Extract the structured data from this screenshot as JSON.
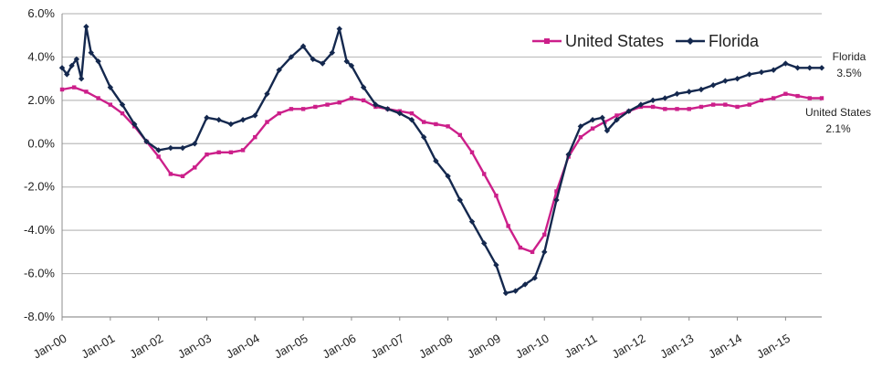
{
  "chart_data": {
    "type": "line",
    "title": "",
    "xlabel": "",
    "ylabel": "",
    "ylim": [
      -8,
      6
    ],
    "y_ticks": [
      "6.0%",
      "4.0%",
      "2.0%",
      "0.0%",
      "-2.0%",
      "-4.0%",
      "-6.0%",
      "-8.0%"
    ],
    "y_tick_values": [
      6,
      4,
      2,
      0,
      -2,
      -4,
      -6,
      -8
    ],
    "x_ticks": [
      "Jan-00",
      "Jan-01",
      "Jan-02",
      "Jan-03",
      "Jan-04",
      "Jan-05",
      "Jan-06",
      "Jan-07",
      "Jan-08",
      "Jan-09",
      "Jan-10",
      "Jan-11",
      "Jan-12",
      "Jan-13",
      "Jan-14",
      "Jan-15"
    ],
    "x_tick_values": [
      2000,
      2001,
      2002,
      2003,
      2004,
      2005,
      2006,
      2007,
      2008,
      2009,
      2010,
      2011,
      2012,
      2013,
      2014,
      2015
    ],
    "xlim": [
      2000,
      2015.75
    ],
    "grid": true,
    "legend": "top-right",
    "series": [
      {
        "name": "United States",
        "color": "#cc1f8a",
        "marker": "square",
        "points": [
          [
            2000,
            2.5
          ],
          [
            2000.25,
            2.6
          ],
          [
            2000.5,
            2.4
          ],
          [
            2000.75,
            2.1
          ],
          [
            2001,
            1.8
          ],
          [
            2001.25,
            1.4
          ],
          [
            2001.5,
            0.8
          ],
          [
            2001.75,
            0.1
          ],
          [
            2002,
            -0.6
          ],
          [
            2002.25,
            -1.4
          ],
          [
            2002.5,
            -1.5
          ],
          [
            2002.75,
            -1.1
          ],
          [
            2003,
            -0.5
          ],
          [
            2003.25,
            -0.4
          ],
          [
            2003.5,
            -0.4
          ],
          [
            2003.75,
            -0.3
          ],
          [
            2004,
            0.3
          ],
          [
            2004.25,
            1.0
          ],
          [
            2004.5,
            1.4
          ],
          [
            2004.75,
            1.6
          ],
          [
            2005,
            1.6
          ],
          [
            2005.25,
            1.7
          ],
          [
            2005.5,
            1.8
          ],
          [
            2005.75,
            1.9
          ],
          [
            2006,
            2.1
          ],
          [
            2006.25,
            2.0
          ],
          [
            2006.5,
            1.7
          ],
          [
            2006.75,
            1.6
          ],
          [
            2007,
            1.5
          ],
          [
            2007.25,
            1.4
          ],
          [
            2007.5,
            1.0
          ],
          [
            2007.75,
            0.9
          ],
          [
            2008,
            0.8
          ],
          [
            2008.25,
            0.4
          ],
          [
            2008.5,
            -0.4
          ],
          [
            2008.75,
            -1.4
          ],
          [
            2009,
            -2.4
          ],
          [
            2009.25,
            -3.8
          ],
          [
            2009.5,
            -4.8
          ],
          [
            2009.75,
            -5.0
          ],
          [
            2010,
            -4.2
          ],
          [
            2010.25,
            -2.2
          ],
          [
            2010.5,
            -0.6
          ],
          [
            2010.75,
            0.3
          ],
          [
            2011,
            0.7
          ],
          [
            2011.25,
            1.0
          ],
          [
            2011.5,
            1.3
          ],
          [
            2011.75,
            1.5
          ],
          [
            2012,
            1.7
          ],
          [
            2012.25,
            1.7
          ],
          [
            2012.5,
            1.6
          ],
          [
            2012.75,
            1.6
          ],
          [
            2013,
            1.6
          ],
          [
            2013.25,
            1.7
          ],
          [
            2013.5,
            1.8
          ],
          [
            2013.75,
            1.8
          ],
          [
            2014,
            1.7
          ],
          [
            2014.25,
            1.8
          ],
          [
            2014.5,
            2.0
          ],
          [
            2014.75,
            2.1
          ],
          [
            2015,
            2.3
          ],
          [
            2015.25,
            2.2
          ],
          [
            2015.5,
            2.1
          ],
          [
            2015.75,
            2.1
          ]
        ]
      },
      {
        "name": "Florida",
        "color": "#14284e",
        "marker": "diamond",
        "points": [
          [
            2000,
            3.5
          ],
          [
            2000.1,
            3.2
          ],
          [
            2000.2,
            3.6
          ],
          [
            2000.3,
            3.9
          ],
          [
            2000.4,
            3.0
          ],
          [
            2000.5,
            5.4
          ],
          [
            2000.6,
            4.2
          ],
          [
            2000.75,
            3.8
          ],
          [
            2001,
            2.6
          ],
          [
            2001.25,
            1.8
          ],
          [
            2001.5,
            0.9
          ],
          [
            2001.75,
            0.1
          ],
          [
            2002,
            -0.3
          ],
          [
            2002.25,
            -0.2
          ],
          [
            2002.5,
            -0.2
          ],
          [
            2002.75,
            0.0
          ],
          [
            2003,
            1.2
          ],
          [
            2003.25,
            1.1
          ],
          [
            2003.5,
            0.9
          ],
          [
            2003.75,
            1.1
          ],
          [
            2004,
            1.3
          ],
          [
            2004.25,
            2.3
          ],
          [
            2004.5,
            3.4
          ],
          [
            2004.75,
            4.0
          ],
          [
            2005,
            4.5
          ],
          [
            2005.2,
            3.9
          ],
          [
            2005.4,
            3.7
          ],
          [
            2005.6,
            4.2
          ],
          [
            2005.75,
            5.3
          ],
          [
            2005.9,
            3.8
          ],
          [
            2006,
            3.6
          ],
          [
            2006.25,
            2.6
          ],
          [
            2006.5,
            1.8
          ],
          [
            2006.75,
            1.6
          ],
          [
            2007,
            1.4
          ],
          [
            2007.25,
            1.1
          ],
          [
            2007.5,
            0.3
          ],
          [
            2007.75,
            -0.8
          ],
          [
            2008,
            -1.5
          ],
          [
            2008.25,
            -2.6
          ],
          [
            2008.5,
            -3.6
          ],
          [
            2008.75,
            -4.6
          ],
          [
            2009,
            -5.6
          ],
          [
            2009.2,
            -6.9
          ],
          [
            2009.4,
            -6.8
          ],
          [
            2009.6,
            -6.5
          ],
          [
            2009.8,
            -6.2
          ],
          [
            2010,
            -5.0
          ],
          [
            2010.25,
            -2.6
          ],
          [
            2010.5,
            -0.5
          ],
          [
            2010.75,
            0.8
          ],
          [
            2011,
            1.1
          ],
          [
            2011.2,
            1.2
          ],
          [
            2011.3,
            0.6
          ],
          [
            2011.5,
            1.1
          ],
          [
            2011.75,
            1.5
          ],
          [
            2012,
            1.8
          ],
          [
            2012.25,
            2.0
          ],
          [
            2012.5,
            2.1
          ],
          [
            2012.75,
            2.3
          ],
          [
            2013,
            2.4
          ],
          [
            2013.25,
            2.5
          ],
          [
            2013.5,
            2.7
          ],
          [
            2013.75,
            2.9
          ],
          [
            2014,
            3.0
          ],
          [
            2014.25,
            3.2
          ],
          [
            2014.5,
            3.3
          ],
          [
            2014.75,
            3.4
          ],
          [
            2015,
            3.7
          ],
          [
            2015.25,
            3.5
          ],
          [
            2015.5,
            3.5
          ],
          [
            2015.75,
            3.5
          ]
        ]
      }
    ],
    "end_labels": [
      {
        "series": "Florida",
        "name": "Florida",
        "value": "3.5%"
      },
      {
        "series": "United States",
        "name": "United States",
        "value": "2.1%"
      }
    ]
  }
}
